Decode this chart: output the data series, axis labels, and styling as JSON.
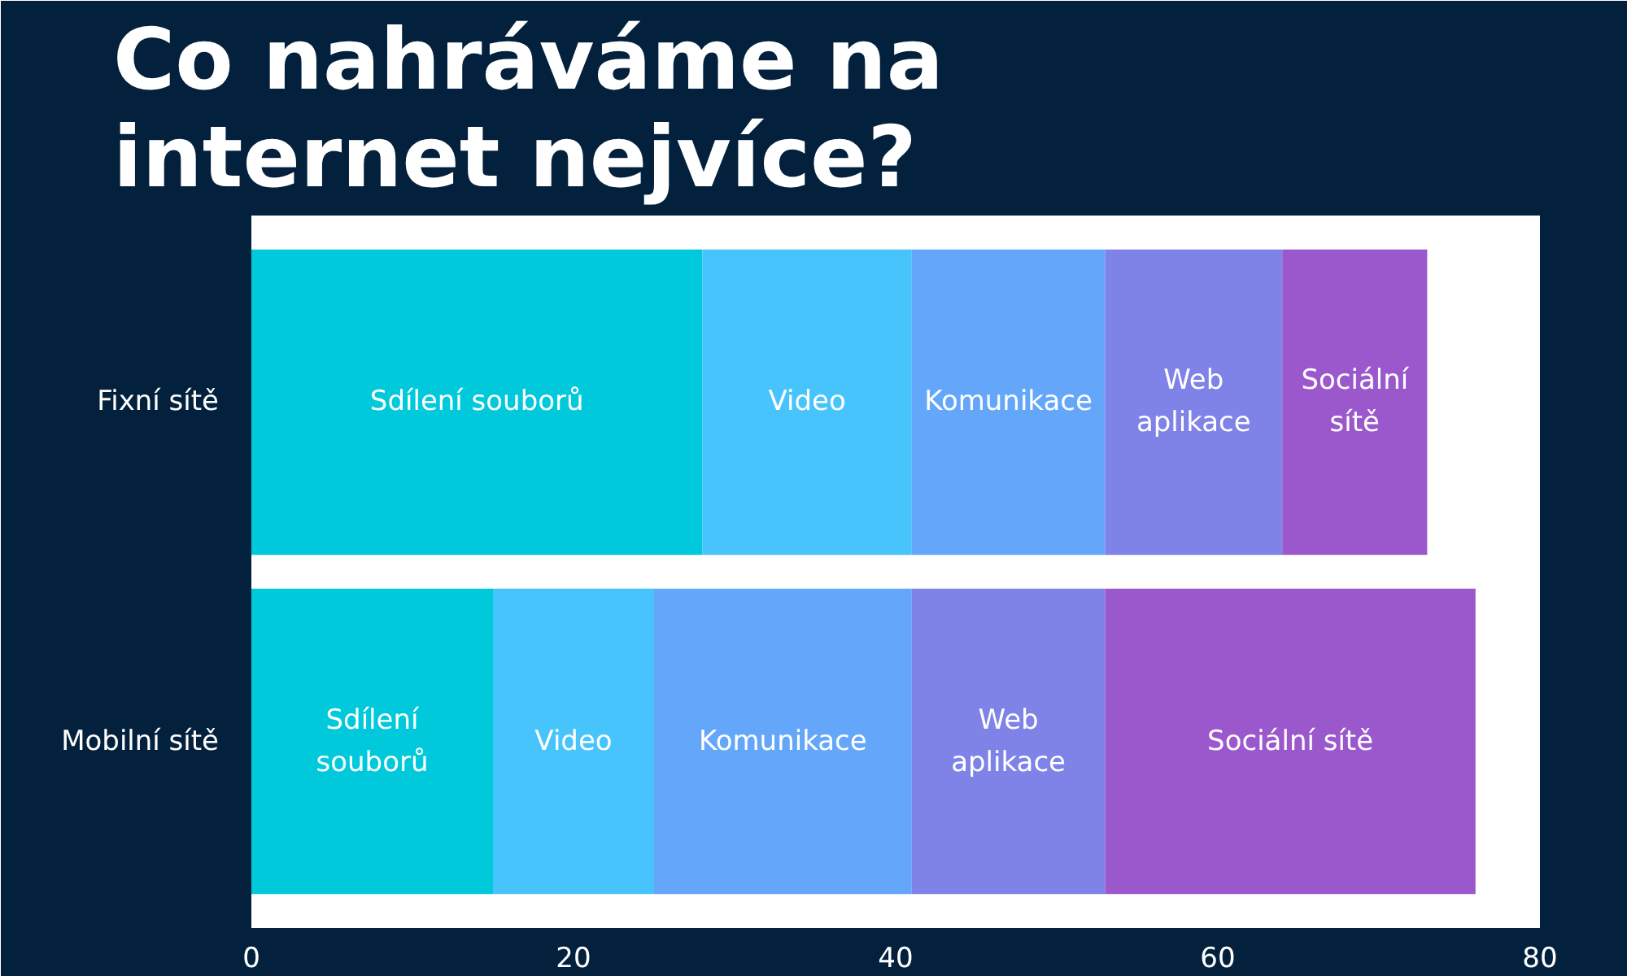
{
  "chart_data": {
    "type": "bar",
    "orientation": "horizontal",
    "stacked": true,
    "title": "Co nahráváme na internet nejvíce?",
    "categories": [
      "Fixní sítě",
      "Mobilní sítě"
    ],
    "series": [
      {
        "name": "Sdílení souborů",
        "color": "#00c9dc",
        "values": [
          28,
          15
        ]
      },
      {
        "name": "Video",
        "color": "#48c4fc",
        "values": [
          13,
          10
        ]
      },
      {
        "name": "Komunikace",
        "color": "#64a6f9",
        "values": [
          12,
          16
        ]
      },
      {
        "name": "Web aplikace",
        "color": "#7f82e6",
        "values": [
          11,
          12
        ]
      },
      {
        "name": "Sociální sítě",
        "color": "#9b58cc",
        "values": [
          9,
          23
        ]
      }
    ],
    "xlim": [
      0,
      80
    ],
    "xticks": [
      0,
      20,
      40,
      60,
      80
    ],
    "grid": false
  }
}
